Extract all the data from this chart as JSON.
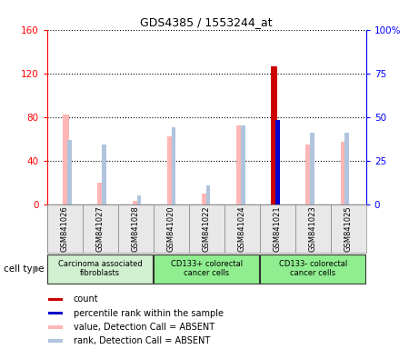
{
  "title": "GDS4385 / 1553244_at",
  "samples": [
    "GSM841026",
    "GSM841027",
    "GSM841028",
    "GSM841020",
    "GSM841022",
    "GSM841024",
    "GSM841021",
    "GSM841023",
    "GSM841025"
  ],
  "value_bars": [
    82,
    20,
    3,
    62,
    10,
    72,
    126,
    55,
    57
  ],
  "rank_pct": [
    37,
    34,
    5,
    44,
    11,
    45,
    48,
    41,
    41
  ],
  "is_present": [
    false,
    false,
    false,
    false,
    false,
    false,
    true,
    false,
    false
  ],
  "cell_groups": [
    {
      "label": "Carcinoma associated\nfibroblasts",
      "start": 0,
      "end": 3,
      "color": "#d0f0d0"
    },
    {
      "label": "CD133+ colorectal\ncancer cells",
      "start": 3,
      "end": 6,
      "color": "#90ee90"
    },
    {
      "label": "CD133- colorectal\ncancer cells",
      "start": 6,
      "end": 9,
      "color": "#90ee90"
    }
  ],
  "left_ylim": [
    0,
    160
  ],
  "right_ylim": [
    0,
    100
  ],
  "left_yticks": [
    0,
    40,
    80,
    120,
    160
  ],
  "right_yticks": [
    0,
    25,
    50,
    75,
    100
  ],
  "right_yticklabels": [
    "0",
    "25",
    "50",
    "75",
    "100%"
  ],
  "value_color_absent": "#ffb6b6",
  "rank_color_absent": "#b0c4de",
  "count_color": "#cc0000",
  "rank_present_color": "#0000cc",
  "bar_width": 0.18,
  "rank_bar_width": 0.12,
  "grid_color": "black",
  "bg_color": "#e8e8e8",
  "fig_width": 4.5,
  "fig_height": 3.84
}
